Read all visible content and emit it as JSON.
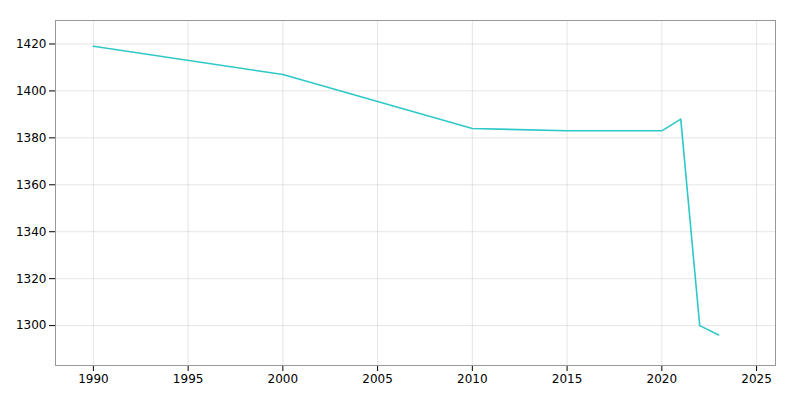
{
  "chart_data": {
    "type": "line",
    "x": [
      1990,
      2000,
      2010,
      2015,
      2020,
      2021,
      2022,
      2023
    ],
    "values": [
      1419,
      1407,
      1384,
      1383,
      1383,
      1388,
      1300,
      1296
    ],
    "color": "#2ec8c8",
    "xlim": [
      1988,
      2026
    ],
    "ylim": [
      1283,
      1430
    ],
    "xticks": [
      1990,
      1995,
      2000,
      2005,
      2010,
      2015,
      2020,
      2025
    ],
    "yticks": [
      1300,
      1320,
      1340,
      1360,
      1380,
      1400,
      1420
    ],
    "grid": true
  }
}
